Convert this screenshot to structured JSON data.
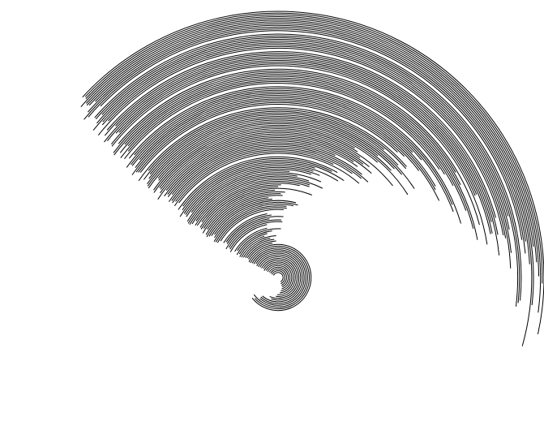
{
  "artwork": {
    "kind": "concentric-arc-spiral",
    "stroke_color": "#000000",
    "background_color": "#ffffff",
    "ring_count": 150,
    "ring_spacing_ratio": 0.0064,
    "start_angle_deg": 180,
    "end_angle_base_deg": 30,
    "end_angle_growth_deg": 0.78,
    "end_angle_jitter_deg": 12,
    "gap_rings": [
      28,
      36,
      68,
      96,
      108,
      118,
      128,
      138
    ],
    "seed": 17
  }
}
